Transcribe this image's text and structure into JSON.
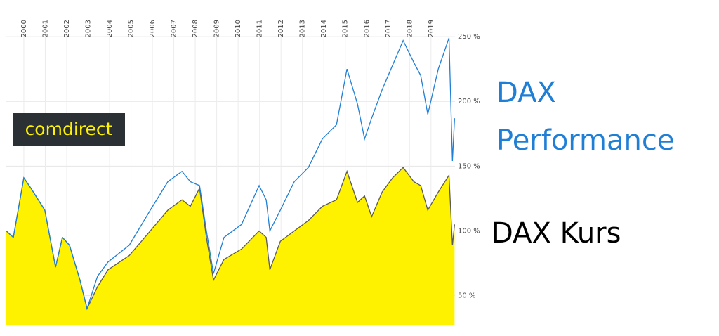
{
  "chart_data": {
    "type": "line",
    "logo": "comdirect",
    "x": [
      1999.18,
      1999.51,
      2000.0,
      2000.33,
      2000.98,
      2001.48,
      2001.8,
      2002.13,
      2002.62,
      2002.95,
      2003.44,
      2003.93,
      2004.92,
      2005.9,
      2006.72,
      2007.38,
      2007.77,
      2008.2,
      2008.52,
      2008.85,
      2009.34,
      2010.16,
      2010.98,
      2011.31,
      2011.48,
      2011.97,
      2012.62,
      2013.28,
      2013.93,
      2014.59,
      2015.08,
      2015.57,
      2015.9,
      2016.23,
      2016.72,
      2017.21,
      2017.7,
      2018.2,
      2018.52,
      2018.85,
      2019.34,
      2019.84,
      2020.0,
      2020.1
    ],
    "series": [
      {
        "name": "DAX Kurs",
        "color": "#5a5a5a",
        "fill": "#fff200",
        "values": [
          100,
          95,
          141,
          133,
          116,
          72,
          95,
          89,
          62,
          40,
          57,
          70,
          81,
          100,
          116,
          124,
          119,
          133,
          95,
          62,
          78,
          86,
          100,
          95,
          70,
          92,
          100,
          108,
          119,
          124,
          146,
          122,
          127,
          111,
          130,
          141,
          149,
          138,
          135,
          116,
          130,
          143,
          89,
          105
        ]
      },
      {
        "name": "DAX Performance",
        "color": "#1f7fd6",
        "values": [
          100,
          95,
          141,
          133,
          116,
          72,
          95,
          89,
          62,
          40,
          65,
          76,
          89,
          116,
          138,
          146,
          138,
          135,
          100,
          67,
          95,
          105,
          135,
          124,
          100,
          116,
          138,
          149,
          171,
          182,
          225,
          198,
          171,
          187,
          209,
          228,
          247,
          230,
          220,
          190,
          225,
          249,
          154,
          187
        ]
      }
    ],
    "xlim": [
      1999.15,
      2020.12
    ],
    "xticks": [
      2000,
      2001,
      2002,
      2003,
      2004,
      2005,
      2006,
      2007,
      2008,
      2009,
      2010,
      2011,
      2012,
      2013,
      2014,
      2015,
      2016,
      2017,
      2018,
      2019
    ],
    "ylim": [
      27,
      262
    ],
    "yticks": [
      {
        "value": 50,
        "label": "50 %"
      },
      {
        "value": 100,
        "label": "100 %"
      },
      {
        "value": 150,
        "label": "150 %"
      },
      {
        "value": 200,
        "label": "200 %"
      },
      {
        "value": 250,
        "label": "250 %"
      }
    ],
    "grid": true
  }
}
